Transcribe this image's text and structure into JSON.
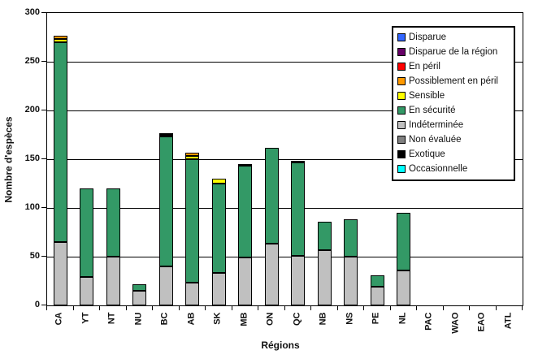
{
  "chart_data": {
    "type": "bar",
    "stacked": true,
    "title": "",
    "xlabel": "Régions",
    "ylabel": "Nombre d'espèces",
    "ylim": [
      0,
      300
    ],
    "yticks": [
      0,
      50,
      100,
      150,
      200,
      250,
      300
    ],
    "grid": true,
    "legend_position": "top-right-inside",
    "categories": [
      "CA",
      "YT",
      "NT",
      "NU",
      "BC",
      "AB",
      "SK",
      "MB",
      "ON",
      "QC",
      "NB",
      "NS",
      "PE",
      "NL",
      "PAC",
      "WAO",
      "EAO",
      "ATL"
    ],
    "series": [
      {
        "name": "Indéterminée",
        "color": "#C0C0C0",
        "values": [
          65,
          29,
          50,
          15,
          40,
          23,
          33,
          49,
          63,
          51,
          57,
          50,
          19,
          36,
          0,
          0,
          0,
          0
        ]
      },
      {
        "name": "En sécurité",
        "color": "#339966",
        "values": [
          205,
          91,
          70,
          7,
          133,
          127,
          92,
          94,
          98,
          96,
          29,
          38,
          12,
          59,
          0,
          0,
          0,
          0
        ]
      },
      {
        "name": "Sensible",
        "color": "#FFFF00",
        "values": [
          3,
          0,
          0,
          0,
          0,
          3,
          5,
          0,
          0,
          0,
          0,
          0,
          0,
          0,
          0,
          0,
          0,
          0
        ]
      },
      {
        "name": "Possiblement en péril",
        "color": "#FF9900",
        "values": [
          3,
          0,
          0,
          0,
          0,
          3,
          0,
          0,
          0,
          2,
          0,
          0,
          0,
          0,
          0,
          0,
          0,
          0
        ]
      },
      {
        "name": "Exotique",
        "color": "#000000",
        "values": [
          0,
          0,
          0,
          0,
          3,
          0,
          0,
          2,
          0,
          0,
          0,
          0,
          0,
          0,
          0,
          0,
          0,
          0
        ]
      }
    ],
    "stack_order": "bottom-to-top",
    "totals": [
      276,
      120,
      120,
      22,
      176,
      156,
      130,
      145,
      161,
      149,
      86,
      88,
      31,
      95,
      0,
      0,
      0,
      0
    ]
  },
  "legend": {
    "entries": [
      {
        "label": "Disparue",
        "color": "#3366FF"
      },
      {
        "label": "Disparue de la région",
        "color": "#660066"
      },
      {
        "label": "En péril",
        "color": "#FF0000"
      },
      {
        "label": "Possiblement en péril",
        "color": "#FF9900"
      },
      {
        "label": "Sensible",
        "color": "#FFFF00"
      },
      {
        "label": "En sécurité",
        "color": "#339966"
      },
      {
        "label": "Indéterminée",
        "color": "#C0C0C0"
      },
      {
        "label": "Non évaluée",
        "color": "#808080"
      },
      {
        "label": "Exotique",
        "color": "#000000"
      },
      {
        "label": "Occasionnelle",
        "color": "#00FFFF"
      }
    ]
  }
}
